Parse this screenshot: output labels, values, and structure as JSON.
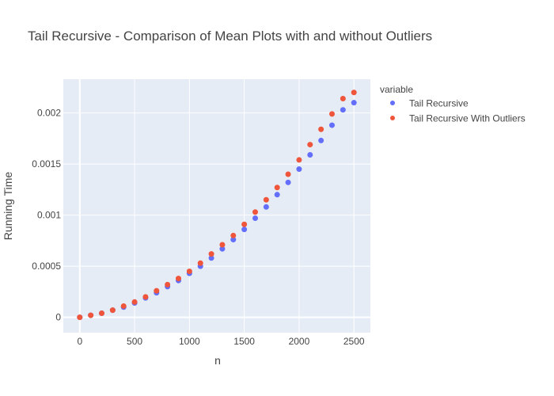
{
  "chart_data": {
    "type": "scatter",
    "title": "Tail Recursive - Comparison of Mean Plots with and without Outliers",
    "xlabel": "n",
    "ylabel": "Running Time",
    "xlim": [
      -150,
      2650
    ],
    "ylim": [
      -0.00015,
      0.00233
    ],
    "x_ticks": [
      0,
      500,
      1000,
      1500,
      2000,
      2500
    ],
    "x_tick_labels": [
      "0",
      "500",
      "1000",
      "1500",
      "2000",
      "2500"
    ],
    "y_ticks": [
      0,
      0.0005,
      0.001,
      0.0015,
      0.002
    ],
    "y_tick_labels": [
      "0",
      "0.0005",
      "0.001",
      "0.0015",
      "0.002"
    ],
    "grid": true,
    "legend": {
      "title": "variable",
      "position": "top-right outside",
      "entries": [
        "Tail Recursive",
        "Tail Recursive With Outliers"
      ]
    },
    "series": [
      {
        "name": "Tail Recursive",
        "color": "#636efa",
        "x": [
          0,
          100,
          200,
          300,
          400,
          500,
          600,
          700,
          800,
          900,
          1000,
          1100,
          1200,
          1300,
          1400,
          1500,
          1600,
          1700,
          1800,
          1900,
          2000,
          2100,
          2200,
          2300,
          2400,
          2500
        ],
        "y": [
          0.0,
          2e-05,
          4e-05,
          7e-05,
          0.0001,
          0.00014,
          0.00019,
          0.00024,
          0.0003,
          0.00036,
          0.00043,
          0.0005,
          0.00058,
          0.00067,
          0.00076,
          0.00086,
          0.00097,
          0.00108,
          0.0012,
          0.00132,
          0.00145,
          0.00159,
          0.00173,
          0.00188,
          0.00203,
          0.0021
        ]
      },
      {
        "name": "Tail Recursive With Outliers",
        "color": "#ef553b",
        "x": [
          0,
          100,
          200,
          300,
          400,
          500,
          600,
          700,
          800,
          900,
          1000,
          1100,
          1200,
          1300,
          1400,
          1500,
          1600,
          1700,
          1800,
          1900,
          2000,
          2100,
          2200,
          2300,
          2400,
          2500
        ],
        "y": [
          0.0,
          2e-05,
          4e-05,
          7e-05,
          0.00011,
          0.00015,
          0.0002,
          0.00026,
          0.00032,
          0.00038,
          0.00045,
          0.00053,
          0.00062,
          0.00071,
          0.0008,
          0.00091,
          0.00103,
          0.00115,
          0.00127,
          0.0014,
          0.00154,
          0.00169,
          0.00184,
          0.00199,
          0.00214,
          0.0022
        ]
      }
    ]
  }
}
